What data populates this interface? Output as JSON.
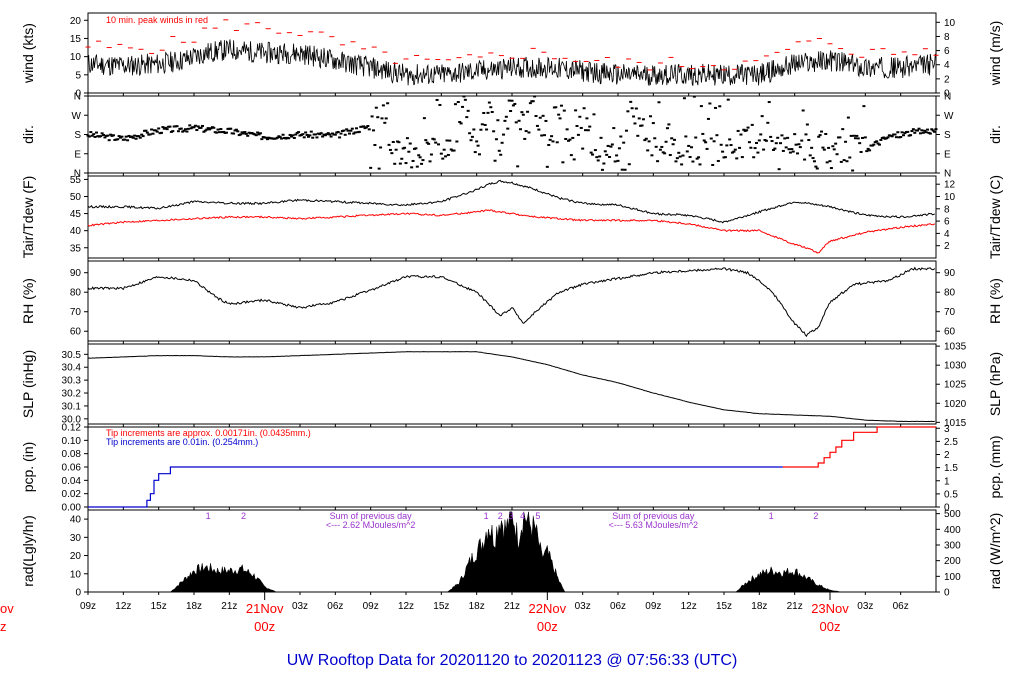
{
  "title": "UW Rooftop Data for 20201120  to  20201123 @ 07:56:33  (UTC)",
  "colors": {
    "main": "#000000",
    "peak": "#ff0000",
    "precip_old": "#0000cc",
    "precip_new": "#ff0000",
    "note": "#9933cc",
    "title": "#0000cc",
    "day": "#ff0000"
  },
  "x_axis": {
    "hours_span": [
      0,
      72
    ],
    "ticks": [
      {
        "h": 0,
        "label": "09z"
      },
      {
        "h": 3,
        "label": "12z"
      },
      {
        "h": 6,
        "label": "15z"
      },
      {
        "h": 9,
        "label": "18z"
      },
      {
        "h": 12,
        "label": "21z"
      },
      {
        "h": 18,
        "label": "03z"
      },
      {
        "h": 21,
        "label": "06z"
      },
      {
        "h": 24,
        "label": "09z"
      },
      {
        "h": 27,
        "label": "12z"
      },
      {
        "h": 30,
        "label": "15z"
      },
      {
        "h": 33,
        "label": "18z"
      },
      {
        "h": 36,
        "label": "21z"
      },
      {
        "h": 42,
        "label": "03z"
      },
      {
        "h": 45,
        "label": "06z"
      },
      {
        "h": 48,
        "label": "09z"
      },
      {
        "h": 51,
        "label": "12z"
      },
      {
        "h": 54,
        "label": "15z"
      },
      {
        "h": 57,
        "label": "18z"
      },
      {
        "h": 60,
        "label": "21z"
      },
      {
        "h": 66,
        "label": "03z"
      },
      {
        "h": 69,
        "label": "06z"
      }
    ],
    "days": [
      {
        "h": 15,
        "date": "21Nov",
        "z": "00z"
      },
      {
        "h": 39,
        "date": "22Nov",
        "z": "00z"
      },
      {
        "h": 63,
        "date": "23Nov",
        "z": "00z"
      }
    ],
    "left_day": {
      "date": "ov",
      "z": "z"
    }
  },
  "chart_data": [
    {
      "type": "line",
      "id": "wind",
      "ylabel": "wind (kts)",
      "ylabel_right": "wind (m/s)",
      "ylim": [
        0,
        22
      ],
      "yticks": [
        "0",
        "5",
        "10",
        "15",
        "20"
      ],
      "ytick_values": [
        0,
        5,
        10,
        15,
        20
      ],
      "right_ticks": [
        "0",
        "2",
        "4",
        "6",
        "8",
        "10"
      ],
      "right_tick_values": [
        0,
        2,
        4,
        6,
        8,
        10
      ],
      "annotation": "10 min. peak winds in red",
      "series": [
        {
          "hours": [
            0,
            3,
            6,
            8,
            10,
            12,
            15,
            18,
            21,
            24,
            27,
            30,
            33,
            36,
            39,
            42,
            45,
            48,
            51,
            54,
            57,
            60,
            63,
            66,
            69,
            72
          ],
          "values": [
            8,
            7.5,
            8,
            9,
            11,
            12,
            11,
            11,
            9,
            7,
            5,
            5,
            6,
            7,
            7,
            6,
            5,
            5,
            5,
            5,
            5,
            8,
            9,
            7,
            7,
            8
          ]
        },
        {
          "hours": [
            0,
            3,
            6,
            8,
            10,
            12,
            15,
            18,
            21,
            24,
            27,
            30,
            33,
            36,
            39,
            42,
            45,
            48,
            51,
            54,
            57,
            60,
            63,
            66,
            69,
            72
          ],
          "values": [
            13,
            12,
            13,
            14,
            17,
            19,
            18,
            17,
            14,
            11,
            9,
            8,
            9,
            11,
            11,
            9,
            8,
            8,
            8,
            8,
            8,
            13,
            14,
            11,
            11,
            12
          ]
        }
      ]
    },
    {
      "type": "scatter",
      "id": "dir",
      "ylabel": "dir.",
      "ylabel_right": "dir.",
      "ylim": [
        0,
        360
      ],
      "yticks": [
        "N",
        "W",
        "S",
        "E",
        "N"
      ],
      "ytick_values": [
        360,
        270,
        180,
        90,
        0
      ],
      "right_ticks": [
        "N",
        "W",
        "S",
        "E",
        "N"
      ],
      "right_tick_values": [
        360,
        270,
        180,
        90,
        0
      ],
      "series": [
        {
          "hours": [
            0,
            3,
            6,
            9,
            12,
            15,
            18,
            21,
            24,
            25,
            26,
            27,
            28,
            29,
            30,
            31,
            32,
            33,
            34,
            35,
            36,
            37,
            38,
            39,
            40,
            41,
            42,
            43,
            44,
            45,
            46,
            48,
            50,
            52,
            54,
            56,
            58,
            60,
            62,
            64,
            66,
            68,
            70,
            72
          ],
          "values": [
            180,
            160,
            200,
            210,
            195,
            170,
            180,
            175,
            220,
            300,
            120,
            100,
            90,
            110,
            100,
            150,
            330,
            90,
            300,
            120,
            330,
            200,
            320,
            100,
            340,
            90,
            300,
            100,
            140,
            90,
            310,
            100,
            90,
            130,
            110,
            150,
            180,
            130,
            120,
            100,
            110,
            170,
            190,
            200
          ]
        }
      ]
    },
    {
      "type": "line",
      "id": "temp",
      "ylabel": "Tair/Tdew (F)",
      "ylabel_right": "Tair/Tdew (C)",
      "ylim": [
        32,
        56
      ],
      "yticks": [
        "35",
        "40",
        "45",
        "50",
        "55"
      ],
      "ytick_values": [
        35,
        40,
        45,
        50,
        55
      ],
      "right_ticks": [
        "2",
        "4",
        "6",
        "8",
        "10",
        "12"
      ],
      "right_tick_values": [
        2,
        4,
        6,
        8,
        10,
        12
      ],
      "series": [
        {
          "hours": [
            0,
            3,
            6,
            9,
            12,
            15,
            18,
            21,
            24,
            27,
            30,
            33,
            34,
            35,
            36,
            38,
            40,
            42,
            45,
            48,
            51,
            54,
            57,
            60,
            63,
            66,
            69,
            72
          ],
          "values": [
            47,
            47,
            46.5,
            48.5,
            48,
            48,
            49,
            48.5,
            48,
            47.5,
            48.5,
            52,
            53.5,
            54.5,
            54,
            52,
            49.5,
            48,
            47.5,
            45,
            44.5,
            42.5,
            45.5,
            48.5,
            47,
            44.5,
            44,
            45
          ]
        },
        {
          "hours": [
            0,
            3,
            6,
            9,
            12,
            15,
            18,
            21,
            24,
            27,
            30,
            33,
            34,
            35,
            36,
            38,
            40,
            42,
            45,
            48,
            51,
            54,
            57,
            60,
            61,
            62,
            63,
            66,
            69,
            72
          ],
          "values": [
            41.5,
            42.5,
            43,
            43.5,
            44,
            44,
            43.5,
            44,
            44.5,
            45,
            44.5,
            45.5,
            46,
            45.5,
            45,
            44,
            43.5,
            43,
            43,
            43,
            42,
            40,
            40,
            36,
            35,
            33.5,
            37,
            39.5,
            41,
            42
          ]
        }
      ]
    },
    {
      "type": "line",
      "id": "rh",
      "ylabel": "RH (%)",
      "ylabel_right": "RH (%)",
      "ylim": [
        55,
        96
      ],
      "yticks": [
        "60",
        "70",
        "80",
        "90"
      ],
      "ytick_values": [
        60,
        70,
        80,
        90
      ],
      "right_ticks": [
        "60",
        "70",
        "80",
        "90"
      ],
      "right_tick_values": [
        60,
        70,
        80,
        90
      ],
      "series": [
        {
          "hours": [
            0,
            3,
            6,
            9,
            11,
            12,
            15,
            18,
            21,
            24,
            27,
            30,
            33,
            35,
            36,
            37,
            38,
            40,
            42,
            45,
            48,
            51,
            54,
            56,
            58,
            60,
            61,
            62,
            63,
            65,
            68,
            70,
            72
          ],
          "values": [
            82,
            82,
            88,
            86,
            77,
            74,
            76,
            72,
            75,
            81,
            88,
            88,
            80,
            68,
            72,
            64,
            70,
            80,
            84,
            87,
            90,
            91,
            92,
            90,
            81,
            64,
            58,
            62,
            75,
            84,
            86,
            92,
            92
          ]
        }
      ]
    },
    {
      "type": "line",
      "id": "slp",
      "ylabel": "SLP (inHg)",
      "ylabel_right": "SLP (hPa)",
      "ylim": [
        29.96,
        30.58
      ],
      "yticks": [
        "30.0",
        "30.1",
        "30.2",
        "30.3",
        "30.4",
        "30.5"
      ],
      "ytick_values": [
        30.0,
        30.1,
        30.2,
        30.3,
        30.4,
        30.5
      ],
      "right_ticks": [
        "1015",
        "1020",
        "1025",
        "1030",
        "1035"
      ],
      "right_tick_values": [
        1015,
        1020,
        1025,
        1030,
        1035
      ],
      "series": [
        {
          "hours": [
            0,
            3,
            6,
            9,
            12,
            15,
            18,
            21,
            24,
            27,
            30,
            33,
            36,
            39,
            42,
            45,
            48,
            51,
            54,
            57,
            60,
            63,
            66,
            69,
            72
          ],
          "values": [
            30.47,
            30.48,
            30.49,
            30.49,
            30.48,
            30.48,
            30.49,
            30.5,
            30.51,
            30.52,
            30.52,
            30.52,
            30.48,
            30.42,
            30.34,
            30.28,
            30.2,
            30.13,
            30.07,
            30.04,
            30.03,
            30.02,
            29.99,
            29.98,
            29.98
          ]
        }
      ]
    },
    {
      "type": "line",
      "id": "pcp",
      "ylabel": "pcp. (in)",
      "ylabel_right": "pcp. (mm)",
      "ylim": [
        0,
        0.12
      ],
      "yticks": [
        "0.00",
        "0.02",
        "0.04",
        "0.06",
        "0.08",
        "0.10",
        "0.12"
      ],
      "ytick_values": [
        0,
        0.02,
        0.04,
        0.06,
        0.08,
        0.1,
        0.12
      ],
      "right_ticks": [
        "0",
        "0.5",
        "1",
        "1.5",
        "2",
        "2.5",
        "3"
      ],
      "right_tick_values": [
        0,
        0.5,
        1,
        1.5,
        2,
        2.5,
        3
      ],
      "notes": [
        "Tip increments are approx. 0.00171in. (0.0435mm.)",
        "Tip increments are 0.01in. (0.254mm.)"
      ],
      "series": [
        {
          "name": "Tip increments are 0.01in. (0.254mm.)",
          "hours": [
            0,
            5,
            5,
            5.3,
            5.3,
            5.6,
            5.6,
            6,
            6,
            7,
            7,
            59
          ],
          "values": [
            0,
            0,
            0.01,
            0.01,
            0.02,
            0.02,
            0.04,
            0.04,
            0.05,
            0.05,
            0.06,
            0.06
          ]
        },
        {
          "name": "Tip increments are approx. 0.00171in. (0.0435mm.)",
          "hours": [
            59,
            62,
            62,
            62.5,
            62.5,
            63,
            63,
            63.5,
            63.5,
            64,
            64,
            65,
            65,
            67,
            67,
            72
          ],
          "values": [
            0.06,
            0.06,
            0.066,
            0.066,
            0.074,
            0.074,
            0.082,
            0.082,
            0.09,
            0.09,
            0.1,
            0.1,
            0.112,
            0.112,
            0.12,
            0.12
          ]
        }
      ]
    },
    {
      "type": "area",
      "id": "rad",
      "ylabel": "rad(Lgly/hr)",
      "ylabel_right": "rad (W/m^2)",
      "ylim": [
        0,
        45
      ],
      "yticks": [
        "0",
        "10",
        "20",
        "30",
        "40"
      ],
      "ytick_values": [
        0,
        10,
        20,
        30,
        40
      ],
      "right_ticks": [
        "0",
        "100",
        "200",
        "300",
        "400",
        "500"
      ],
      "right_tick_values": [
        0,
        100,
        200,
        300,
        400,
        500
      ],
      "hour_marks": [
        {
          "h": 10.2,
          "label": "1"
        },
        {
          "h": 13.2,
          "label": "2"
        },
        {
          "h": 33.8,
          "label": "1"
        },
        {
          "h": 35,
          "label": "2"
        },
        {
          "h": 36.9,
          "label": "4"
        },
        {
          "h": 38.2,
          "label": "5"
        },
        {
          "h": 58,
          "label": "1"
        },
        {
          "h": 61.8,
          "label": "2"
        }
      ],
      "mark_extra": {
        "h": 35.9,
        "label": "3"
      },
      "sums": [
        {
          "h": 24,
          "line1": "Sum of previous day",
          "line2": "<--- 2.62 MJoules/m^2"
        },
        {
          "h": 48,
          "line1": "Sum of previous day",
          "line2": "<--- 5.63 MJoules/m^2"
        }
      ],
      "series": [
        {
          "hours": [
            7,
            8,
            9,
            10,
            11,
            12,
            13,
            14,
            15,
            16,
            30.5,
            31.5,
            32.5,
            33.5,
            34,
            34.5,
            35,
            35.5,
            36,
            36.5,
            37,
            37.5,
            38,
            38.5,
            39,
            40,
            40.5,
            55,
            56,
            57,
            58,
            59,
            60,
            61,
            62,
            63,
            64
          ],
          "values": [
            0,
            6,
            12,
            14,
            12,
            12,
            13,
            10,
            3,
            0,
            0,
            5,
            18,
            28,
            38,
            30,
            42,
            35,
            46,
            30,
            44,
            38,
            35,
            20,
            22,
            6,
            0,
            0,
            6,
            10,
            12,
            11,
            12,
            8,
            4,
            1,
            0
          ]
        }
      ]
    }
  ]
}
